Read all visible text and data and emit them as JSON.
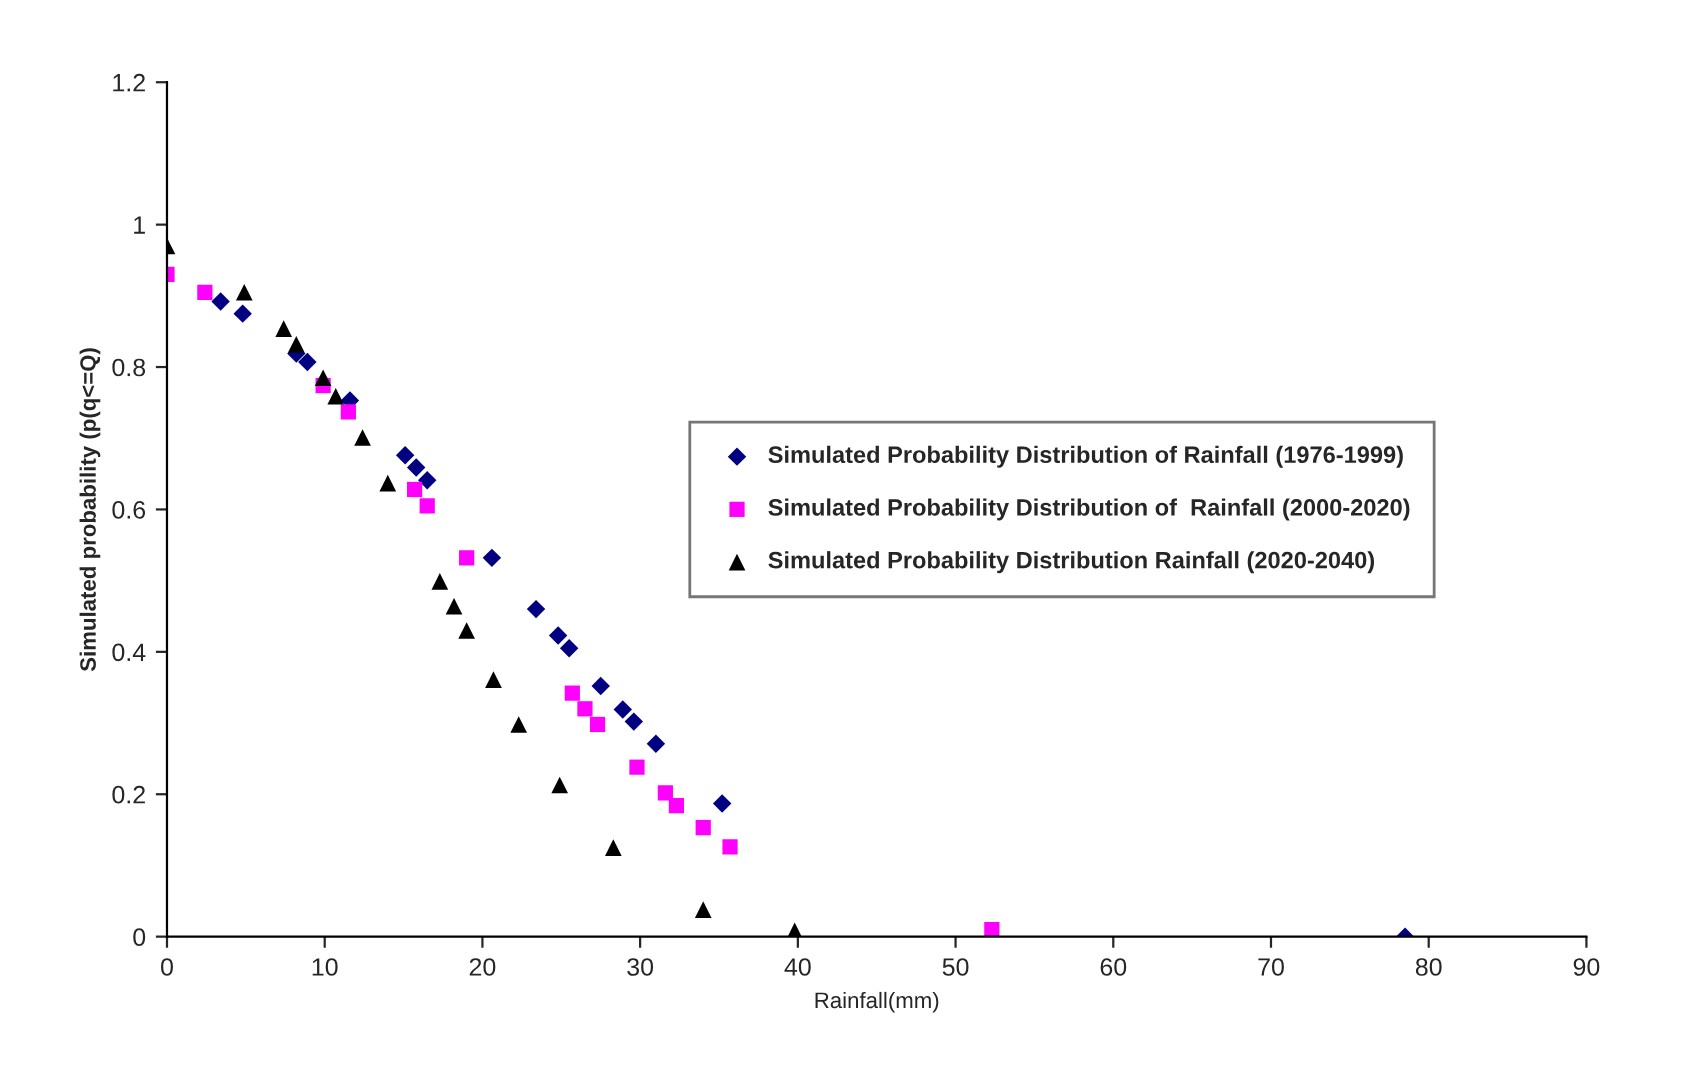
{
  "chart_data": {
    "type": "scatter",
    "xlabel": "Rainfall(mm)",
    "ylabel": "Simulated probability (p(q<=Q)",
    "xlim": [
      0,
      90
    ],
    "xticks": [
      0,
      10,
      20,
      30,
      40,
      50,
      60,
      70,
      80,
      90
    ],
    "ylim": [
      0,
      1.2
    ],
    "yticks": [
      0,
      0.2,
      0.4,
      0.6,
      0.8,
      1,
      1.2
    ],
    "grid": false,
    "legend": "right",
    "series": [
      {
        "name": "Simulated Probability Distribution of Rainfall (1976-1999)",
        "color": "#000080",
        "marker": "diamond",
        "x": [
          3.4,
          4.8,
          8.2,
          8.9,
          11.6,
          15.1,
          15.8,
          16.5,
          20.6,
          23.4,
          24.8,
          25.5,
          27.5,
          28.9,
          29.6,
          31.0,
          35.2,
          78.5
        ],
        "values": [
          0.892,
          0.875,
          0.819,
          0.807,
          0.753,
          0.676,
          0.659,
          0.641,
          0.532,
          0.46,
          0.423,
          0.405,
          0.352,
          0.319,
          0.302,
          0.271,
          0.187,
          0
        ]
      },
      {
        "name": "Simulated Probability Distribution of  Rainfall (2000-2020)",
        "color": "#ff00ff",
        "marker": "square",
        "x": [
          0,
          2.4,
          9.9,
          11.5,
          15.7,
          16.5,
          19.0,
          25.7,
          26.5,
          27.3,
          29.8,
          31.6,
          32.3,
          34.0,
          35.7,
          52.3
        ],
        "values": [
          0.93,
          0.905,
          0.774,
          0.737,
          0.628,
          0.605,
          0.532,
          0.342,
          0.32,
          0.298,
          0.238,
          0.202,
          0.184,
          0.153,
          0.126,
          0.01
        ]
      },
      {
        "name": "Simulated Probability Distribution Rainfall (2020-2040)",
        "color": "#000000",
        "marker": "triangle",
        "x": [
          0,
          4.9,
          7.4,
          8.2,
          9.9,
          10.7,
          12.4,
          14.0,
          17.3,
          18.2,
          19.0,
          20.7,
          22.3,
          24.9,
          28.3,
          34.0,
          39.8
        ],
        "values": [
          0.97,
          0.905,
          0.854,
          0.832,
          0.785,
          0.759,
          0.701,
          0.637,
          0.499,
          0.464,
          0.43,
          0.361,
          0.298,
          0.213,
          0.125,
          0.038,
          0.008
        ]
      }
    ]
  }
}
